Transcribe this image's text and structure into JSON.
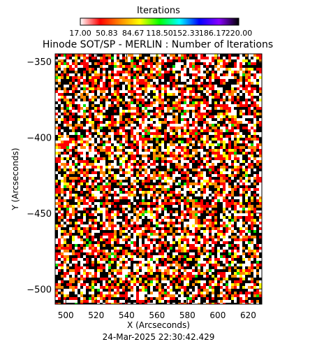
{
  "chart_data": {
    "type": "heatmap",
    "title": "Hinode SOT/SP - MERLIN : Number of Iterations",
    "xlabel": "X (Arcseconds)",
    "ylabel": "Y (Arcseconds)",
    "xlim": [
      493,
      629
    ],
    "ylim": [
      -510,
      -345
    ],
    "x_ticks": [
      500,
      520,
      540,
      560,
      580,
      600,
      620
    ],
    "y_ticks": [
      -350,
      -400,
      -450,
      -500
    ],
    "y_tick_labels": [
      "−350",
      "−400",
      "−450",
      "−500"
    ],
    "colorbar": {
      "title": "Iterations",
      "range": [
        17.0,
        220.0
      ],
      "tick_labels": [
        "17.00",
        "50.83",
        "84.67",
        "118.50",
        "152.33",
        "186.17",
        "220.00"
      ],
      "colors": [
        "#ffffff",
        "#ff0000",
        "#ff8800",
        "#ffff00",
        "#00ff00",
        "#00ffff",
        "#0000ff",
        "#8800ff",
        "#000000"
      ]
    },
    "pixel_colors": [
      "#000000",
      "#ffffff",
      "#ff0000",
      "#ff8800",
      "#ffff00",
      "#00dd00"
    ],
    "pixel_color_weights": [
      0.32,
      0.26,
      0.22,
      0.13,
      0.05,
      0.02
    ],
    "timestamp": "24-Mar-2025 22:30:42.429"
  }
}
